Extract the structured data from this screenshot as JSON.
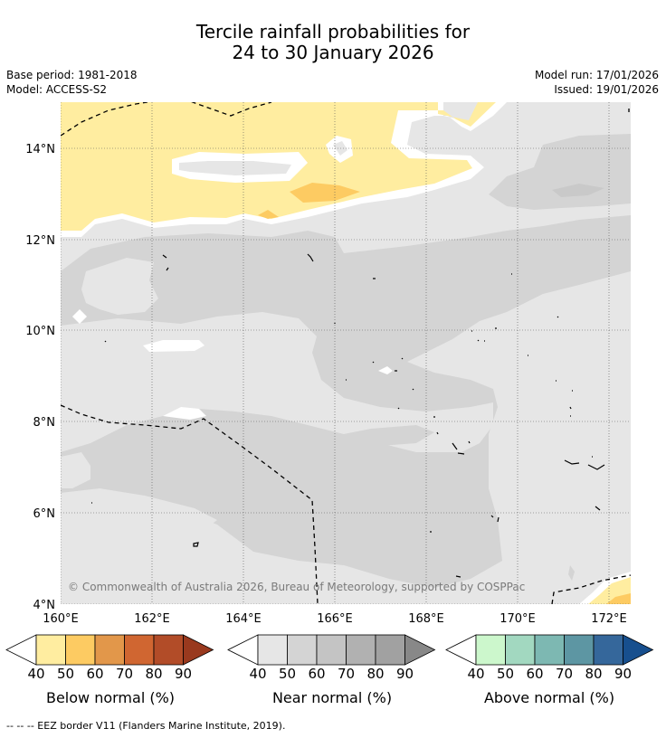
{
  "title": {
    "line1": "Tercile rainfall probabilities for",
    "line2": "24 to 30 January 2026"
  },
  "meta": {
    "base_period": "Base period: 1981-2018",
    "model": "Model: ACCESS-S2",
    "model_run": "Model run: 17/01/2026",
    "issued": "Issued: 19/01/2026"
  },
  "map": {
    "copyright": "© Commonwealth of Australia 2026, Bureau of Meteorology, supported by COSPPac",
    "lat_labels": [
      "14°N",
      "12°N",
      "10°N",
      "8°N",
      "6°N",
      "4°N"
    ],
    "lon_labels": [
      "160°E",
      "162°E",
      "164°E",
      "166°E",
      "168°E",
      "170°E",
      "172°E"
    ],
    "lat_range": [
      4,
      15
    ],
    "lon_range": [
      160,
      172.5
    ]
  },
  "colorbars": [
    {
      "name": "below",
      "label": "Below normal (%)",
      "ticks": [
        "40",
        "50",
        "60",
        "70",
        "80",
        "90"
      ],
      "colors": [
        "#ffeda0",
        "#fdcb62",
        "#e2974a",
        "#d06631",
        "#b24c28",
        "#99391e"
      ]
    },
    {
      "name": "near",
      "label": "Near normal (%)",
      "ticks": [
        "40",
        "50",
        "60",
        "70",
        "80",
        "90"
      ],
      "colors": [
        "#e6e6e6",
        "#d4d4d4",
        "#c4c4c4",
        "#b1b1b1",
        "#a1a1a1",
        "#888888"
      ]
    },
    {
      "name": "above",
      "label": "Above normal (%)",
      "ticks": [
        "40",
        "50",
        "60",
        "70",
        "80",
        "90"
      ],
      "colors": [
        "#ccf7cc",
        "#a2d8c0",
        "#7db8b2",
        "#5d96a3",
        "#35679b",
        "#174f8e"
      ]
    }
  ],
  "footer": "--  --  -- EEZ border V11 (Flanders Marine Institute, 2019)."
}
